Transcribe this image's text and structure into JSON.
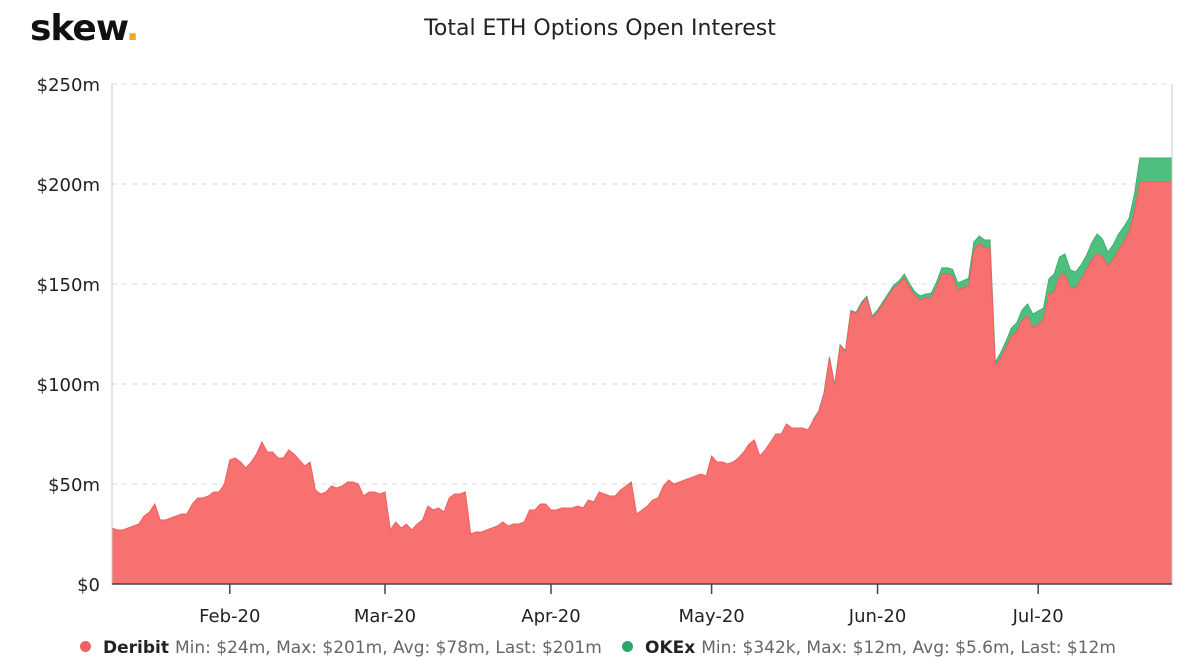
{
  "brand": {
    "name": "skew",
    "dot": "."
  },
  "colors": {
    "deribit": "#f87171",
    "okex": "#4fbf7f",
    "okex_line": "#3fae6e",
    "deribit_line": "#f25f5f",
    "grid": "#d9d9d9",
    "axis": "#444444"
  },
  "chart_data": {
    "type": "area",
    "stacked": true,
    "title": "Total ETH Options Open Interest",
    "xlabel": "",
    "ylabel": "",
    "ylim": [
      0,
      250
    ],
    "y_unit": "$m",
    "yticks": [
      0,
      50,
      100,
      150,
      200,
      250
    ],
    "ytick_labels": [
      "$0",
      "$50m",
      "$100m",
      "$150m",
      "$200m",
      "$250m"
    ],
    "xlim": [
      "2020-01-10",
      "2020-07-26"
    ],
    "xtick_labels": [
      "Feb-20",
      "Mar-20",
      "Apr-20",
      "May-20",
      "Jun-20",
      "Jul-20"
    ],
    "xtick_dates": [
      "2020-02-01",
      "2020-03-01",
      "2020-04-01",
      "2020-05-01",
      "2020-06-01",
      "2020-07-01"
    ],
    "grid": true,
    "legend_position": "bottom",
    "series": [
      {
        "name": "Deribit",
        "stats": "Min: $24m, Max: $201m, Avg: $78m, Last: $201m",
        "points": [
          [
            "2020-01-10",
            28
          ],
          [
            "2020-01-11",
            27
          ],
          [
            "2020-01-12",
            27
          ],
          [
            "2020-01-13",
            28
          ],
          [
            "2020-01-14",
            29
          ],
          [
            "2020-01-15",
            30
          ],
          [
            "2020-01-16",
            34
          ],
          [
            "2020-01-17",
            36
          ],
          [
            "2020-01-18",
            40
          ],
          [
            "2020-01-19",
            32
          ],
          [
            "2020-01-20",
            32
          ],
          [
            "2020-01-21",
            33
          ],
          [
            "2020-01-22",
            34
          ],
          [
            "2020-01-23",
            35
          ],
          [
            "2020-01-24",
            35
          ],
          [
            "2020-01-25",
            40
          ],
          [
            "2020-01-26",
            43
          ],
          [
            "2020-01-27",
            43
          ],
          [
            "2020-01-28",
            44
          ],
          [
            "2020-01-29",
            46
          ],
          [
            "2020-01-30",
            46
          ],
          [
            "2020-01-31",
            50
          ],
          [
            "2020-02-01",
            62
          ],
          [
            "2020-02-02",
            63
          ],
          [
            "2020-02-03",
            61
          ],
          [
            "2020-02-04",
            58
          ],
          [
            "2020-02-05",
            61
          ],
          [
            "2020-02-06",
            65
          ],
          [
            "2020-02-07",
            71
          ],
          [
            "2020-02-08",
            66
          ],
          [
            "2020-02-09",
            66
          ],
          [
            "2020-02-10",
            63
          ],
          [
            "2020-02-11",
            63
          ],
          [
            "2020-02-12",
            67
          ],
          [
            "2020-02-13",
            65
          ],
          [
            "2020-02-14",
            62
          ],
          [
            "2020-02-15",
            59
          ],
          [
            "2020-02-16",
            61
          ],
          [
            "2020-02-17",
            47
          ],
          [
            "2020-02-18",
            45
          ],
          [
            "2020-02-19",
            46
          ],
          [
            "2020-02-20",
            49
          ],
          [
            "2020-02-21",
            48
          ],
          [
            "2020-02-22",
            49
          ],
          [
            "2020-02-23",
            51
          ],
          [
            "2020-02-24",
            51
          ],
          [
            "2020-02-25",
            50
          ],
          [
            "2020-02-26",
            44
          ],
          [
            "2020-02-27",
            46
          ],
          [
            "2020-02-28",
            46
          ],
          [
            "2020-02-29",
            45
          ],
          [
            "2020-03-01",
            46
          ],
          [
            "2020-03-02",
            27
          ],
          [
            "2020-03-03",
            31
          ],
          [
            "2020-03-04",
            28
          ],
          [
            "2020-03-05",
            30
          ],
          [
            "2020-03-06",
            27
          ],
          [
            "2020-03-07",
            30
          ],
          [
            "2020-03-08",
            32
          ],
          [
            "2020-03-09",
            39
          ],
          [
            "2020-03-10",
            37
          ],
          [
            "2020-03-11",
            38
          ],
          [
            "2020-03-12",
            36
          ],
          [
            "2020-03-13",
            43
          ],
          [
            "2020-03-14",
            45
          ],
          [
            "2020-03-15",
            45
          ],
          [
            "2020-03-16",
            46
          ],
          [
            "2020-03-17",
            25
          ],
          [
            "2020-03-18",
            26
          ],
          [
            "2020-03-19",
            26
          ],
          [
            "2020-03-20",
            27
          ],
          [
            "2020-03-21",
            28
          ],
          [
            "2020-03-22",
            29
          ],
          [
            "2020-03-23",
            31
          ],
          [
            "2020-03-24",
            29
          ],
          [
            "2020-03-25",
            30
          ],
          [
            "2020-03-26",
            30
          ],
          [
            "2020-03-27",
            31
          ],
          [
            "2020-03-28",
            37
          ],
          [
            "2020-03-29",
            37
          ],
          [
            "2020-03-30",
            40
          ],
          [
            "2020-03-31",
            40
          ],
          [
            "2020-04-01",
            37
          ],
          [
            "2020-04-02",
            37
          ],
          [
            "2020-04-03",
            38
          ],
          [
            "2020-04-04",
            38
          ],
          [
            "2020-04-05",
            38
          ],
          [
            "2020-04-06",
            39
          ],
          [
            "2020-04-07",
            38
          ],
          [
            "2020-04-08",
            42
          ],
          [
            "2020-04-09",
            41
          ],
          [
            "2020-04-10",
            46
          ],
          [
            "2020-04-11",
            45
          ],
          [
            "2020-04-12",
            44
          ],
          [
            "2020-04-13",
            44
          ],
          [
            "2020-04-14",
            47
          ],
          [
            "2020-04-15",
            49
          ],
          [
            "2020-04-16",
            51
          ],
          [
            "2020-04-17",
            35
          ],
          [
            "2020-04-18",
            37
          ],
          [
            "2020-04-19",
            39
          ],
          [
            "2020-04-20",
            42
          ],
          [
            "2020-04-21",
            43
          ],
          [
            "2020-04-22",
            49
          ],
          [
            "2020-04-23",
            52
          ],
          [
            "2020-04-24",
            50
          ],
          [
            "2020-04-25",
            51
          ],
          [
            "2020-04-26",
            52
          ],
          [
            "2020-04-27",
            53
          ],
          [
            "2020-04-28",
            54
          ],
          [
            "2020-04-29",
            55
          ],
          [
            "2020-04-30",
            54
          ],
          [
            "2020-05-01",
            64
          ],
          [
            "2020-05-02",
            61
          ],
          [
            "2020-05-03",
            61
          ],
          [
            "2020-05-04",
            60
          ],
          [
            "2020-05-05",
            61
          ],
          [
            "2020-05-06",
            63
          ],
          [
            "2020-05-07",
            66
          ],
          [
            "2020-05-08",
            70
          ],
          [
            "2020-05-09",
            72
          ],
          [
            "2020-05-10",
            64
          ],
          [
            "2020-05-11",
            67
          ],
          [
            "2020-05-12",
            71
          ],
          [
            "2020-05-13",
            75
          ],
          [
            "2020-05-14",
            75
          ],
          [
            "2020-05-15",
            80
          ],
          [
            "2020-05-16",
            78
          ],
          [
            "2020-05-17",
            78
          ],
          [
            "2020-05-18",
            78
          ],
          [
            "2020-05-19",
            77
          ],
          [
            "2020-05-20",
            82
          ],
          [
            "2020-05-21",
            86
          ],
          [
            "2020-05-22",
            95
          ],
          [
            "2020-05-23",
            113
          ],
          [
            "2020-05-24",
            99
          ],
          [
            "2020-05-25",
            119
          ],
          [
            "2020-05-26",
            116
          ],
          [
            "2020-05-27",
            136
          ],
          [
            "2020-05-28",
            135
          ],
          [
            "2020-05-29",
            140
          ],
          [
            "2020-05-30",
            143
          ],
          [
            "2020-05-31",
            133
          ],
          [
            "2020-06-01",
            136
          ],
          [
            "2020-06-02",
            140
          ],
          [
            "2020-06-03",
            144
          ],
          [
            "2020-06-04",
            148
          ],
          [
            "2020-06-05",
            150
          ],
          [
            "2020-06-06",
            153
          ],
          [
            "2020-06-07",
            148
          ],
          [
            "2020-06-08",
            144
          ],
          [
            "2020-06-09",
            142
          ],
          [
            "2020-06-10",
            143
          ],
          [
            "2020-06-11",
            143
          ],
          [
            "2020-06-12",
            148
          ],
          [
            "2020-06-13",
            155
          ],
          [
            "2020-06-14",
            155
          ],
          [
            "2020-06-15",
            154
          ],
          [
            "2020-06-16",
            147
          ],
          [
            "2020-06-17",
            148
          ],
          [
            "2020-06-18",
            149
          ],
          [
            "2020-06-19",
            167
          ],
          [
            "2020-06-20",
            170
          ],
          [
            "2020-06-21",
            168
          ],
          [
            "2020-06-22",
            168
          ],
          [
            "2020-06-23",
            109
          ],
          [
            "2020-06-24",
            113
          ],
          [
            "2020-06-25",
            118
          ],
          [
            "2020-06-26",
            124
          ],
          [
            "2020-06-27",
            126
          ],
          [
            "2020-06-28",
            132
          ],
          [
            "2020-06-29",
            134
          ],
          [
            "2020-06-30",
            128
          ],
          [
            "2020-07-01",
            130
          ],
          [
            "2020-07-02",
            132
          ],
          [
            "2020-07-03",
            145
          ],
          [
            "2020-07-04",
            146
          ],
          [
            "2020-07-05",
            154
          ],
          [
            "2020-07-06",
            155
          ],
          [
            "2020-07-07",
            148
          ],
          [
            "2020-07-08",
            148
          ],
          [
            "2020-07-09",
            152
          ],
          [
            "2020-07-10",
            157
          ],
          [
            "2020-07-11",
            162
          ],
          [
            "2020-07-12",
            165
          ],
          [
            "2020-07-13",
            164
          ],
          [
            "2020-07-14",
            159
          ],
          [
            "2020-07-15",
            162
          ],
          [
            "2020-07-16",
            167
          ],
          [
            "2020-07-17",
            171
          ],
          [
            "2020-07-18",
            176
          ],
          [
            "2020-07-19",
            186
          ],
          [
            "2020-07-20",
            201
          ],
          [
            "2020-07-20",
            201
          ]
        ]
      },
      {
        "name": "OKEx",
        "stats": "Min: $342k, Max: $12m, Avg: $5.6m, Last: $12m",
        "points": [
          [
            "2020-05-20",
            0.34
          ],
          [
            "2020-06-01",
            1
          ],
          [
            "2020-06-05",
            1.5
          ],
          [
            "2020-06-06",
            2
          ],
          [
            "2020-06-10",
            2
          ],
          [
            "2020-06-13",
            3
          ],
          [
            "2020-06-19",
            4
          ],
          [
            "2020-06-20",
            4
          ],
          [
            "2020-06-21",
            4
          ],
          [
            "2020-06-22",
            4
          ],
          [
            "2020-06-23",
            2
          ],
          [
            "2020-06-26",
            4
          ],
          [
            "2020-06-28",
            5
          ],
          [
            "2020-06-30",
            7
          ],
          [
            "2020-07-02",
            6
          ],
          [
            "2020-07-04",
            9
          ],
          [
            "2020-07-06",
            10
          ],
          [
            "2020-07-08",
            8
          ],
          [
            "2020-07-10",
            7
          ],
          [
            "2020-07-12",
            10
          ],
          [
            "2020-07-14",
            7
          ],
          [
            "2020-07-16",
            8
          ],
          [
            "2020-07-18",
            7
          ],
          [
            "2020-07-19",
            9
          ],
          [
            "2020-07-20",
            12
          ]
        ]
      }
    ]
  }
}
